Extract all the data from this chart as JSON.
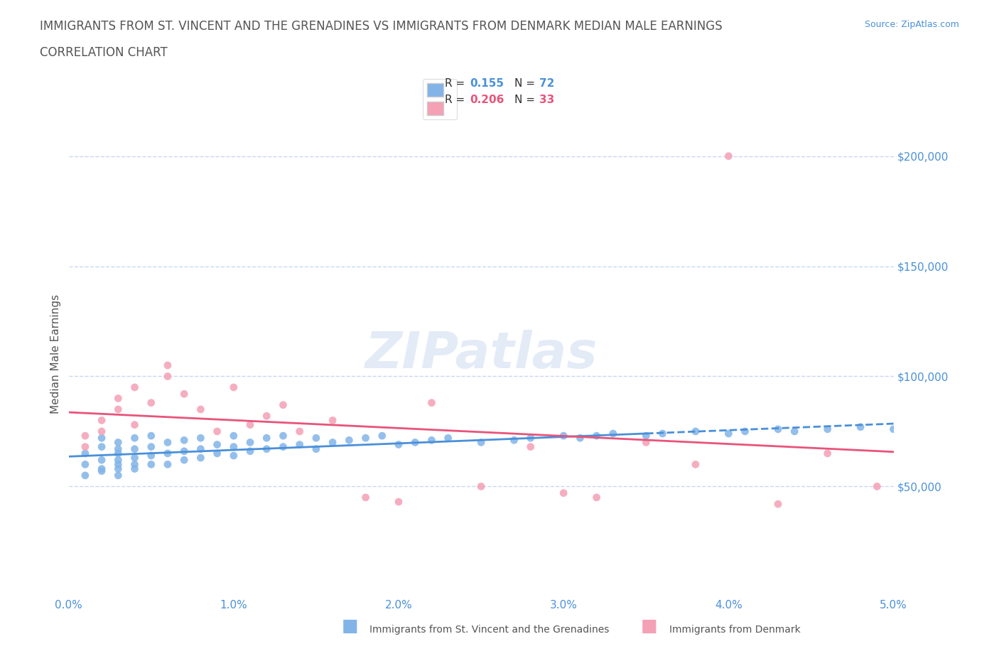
{
  "title_line1": "IMMIGRANTS FROM ST. VINCENT AND THE GRENADINES VS IMMIGRANTS FROM DENMARK MEDIAN MALE EARNINGS",
  "title_line2": "CORRELATION CHART",
  "source_text": "Source: ZipAtlas.com",
  "xlabel": "",
  "ylabel": "Median Male Earnings",
  "xlim": [
    0,
    0.05
  ],
  "ylim": [
    0,
    220000
  ],
  "xtick_labels": [
    "0.0%",
    "1.0%",
    "2.0%",
    "3.0%",
    "4.0%",
    "5.0%"
  ],
  "xtick_values": [
    0.0,
    0.01,
    0.02,
    0.03,
    0.04,
    0.05
  ],
  "ytick_labels": [
    "$50,000",
    "$100,000",
    "$150,000",
    "$200,000"
  ],
  "ytick_values": [
    50000,
    100000,
    150000,
    200000
  ],
  "R_blue": 0.155,
  "N_blue": 72,
  "R_pink": 0.206,
  "N_pink": 33,
  "color_blue": "#82b4e8",
  "color_pink": "#f4a0b5",
  "trendline_blue": "#4a90d9",
  "trendline_pink": "#e8547a",
  "axis_color": "#4a90d9",
  "title_color": "#555555",
  "watermark_color": "#c8d8f0",
  "background_color": "#ffffff",
  "grid_color": "#c8d8f0",
  "blue_scatter_x": [
    0.001,
    0.001,
    0.001,
    0.002,
    0.002,
    0.002,
    0.002,
    0.002,
    0.003,
    0.003,
    0.003,
    0.003,
    0.003,
    0.003,
    0.003,
    0.004,
    0.004,
    0.004,
    0.004,
    0.004,
    0.005,
    0.005,
    0.005,
    0.005,
    0.006,
    0.006,
    0.006,
    0.007,
    0.007,
    0.007,
    0.008,
    0.008,
    0.008,
    0.009,
    0.009,
    0.01,
    0.01,
    0.01,
    0.011,
    0.011,
    0.012,
    0.012,
    0.013,
    0.013,
    0.014,
    0.015,
    0.015,
    0.016,
    0.017,
    0.018,
    0.019,
    0.02,
    0.021,
    0.022,
    0.023,
    0.025,
    0.027,
    0.028,
    0.03,
    0.031,
    0.032,
    0.033,
    0.035,
    0.036,
    0.038,
    0.04,
    0.041,
    0.043,
    0.044,
    0.046,
    0.048,
    0.05
  ],
  "blue_scatter_y": [
    60000,
    55000,
    65000,
    58000,
    62000,
    68000,
    72000,
    57000,
    55000,
    60000,
    65000,
    70000,
    58000,
    62000,
    67000,
    60000,
    63000,
    67000,
    72000,
    58000,
    60000,
    64000,
    68000,
    73000,
    60000,
    65000,
    70000,
    62000,
    66000,
    71000,
    63000,
    67000,
    72000,
    65000,
    69000,
    64000,
    68000,
    73000,
    66000,
    70000,
    67000,
    72000,
    68000,
    73000,
    69000,
    67000,
    72000,
    70000,
    71000,
    72000,
    73000,
    69000,
    70000,
    71000,
    72000,
    70000,
    71000,
    72000,
    73000,
    72000,
    73000,
    74000,
    73000,
    74000,
    75000,
    74000,
    75000,
    76000,
    75000,
    76000,
    77000,
    76000
  ],
  "pink_scatter_x": [
    0.001,
    0.001,
    0.002,
    0.002,
    0.003,
    0.003,
    0.004,
    0.004,
    0.005,
    0.006,
    0.006,
    0.007,
    0.008,
    0.009,
    0.01,
    0.011,
    0.012,
    0.013,
    0.014,
    0.016,
    0.018,
    0.02,
    0.022,
    0.025,
    0.028,
    0.03,
    0.032,
    0.035,
    0.038,
    0.04,
    0.043,
    0.046,
    0.049
  ],
  "pink_scatter_y": [
    73000,
    68000,
    75000,
    80000,
    85000,
    90000,
    78000,
    95000,
    88000,
    100000,
    105000,
    92000,
    85000,
    75000,
    95000,
    78000,
    82000,
    87000,
    75000,
    80000,
    45000,
    43000,
    88000,
    50000,
    68000,
    47000,
    45000,
    70000,
    60000,
    200000,
    42000,
    65000,
    50000
  ]
}
